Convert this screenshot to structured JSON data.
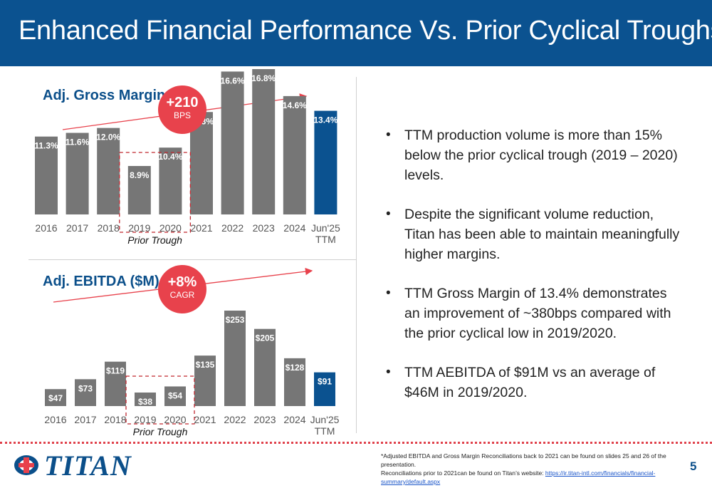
{
  "title": "Enhanced Financial Performance Vs. Prior Cyclical Troughs",
  "chart_data": [
    {
      "type": "bar",
      "title": "Adj. Gross Margin",
      "categories": [
        "2016",
        "2017",
        "2018",
        "2019",
        "2020",
        "2021",
        "2022",
        "2023",
        "2024",
        "Jun'25 TTM"
      ],
      "values": [
        11.3,
        11.6,
        12.0,
        8.9,
        10.4,
        13.3,
        16.6,
        16.8,
        14.6,
        13.4
      ],
      "value_labels": [
        "11.3%",
        "11.6%",
        "12.0%",
        "8.9%",
        "10.4%",
        "13.3%",
        "16.6%",
        "16.8%",
        "14.6%",
        "13.4%"
      ],
      "highlight_index": 9,
      "trough_label": "Prior Trough",
      "badge": {
        "value": "+210",
        "unit": "BPS"
      },
      "colors": {
        "bar": "#767676",
        "highlight": "#0b5290",
        "arrow": "#e8424c"
      }
    },
    {
      "type": "bar",
      "title": "Adj. EBITDA ($M)",
      "categories": [
        "2016",
        "2017",
        "2018",
        "2019",
        "2020",
        "2021",
        "2022",
        "2023",
        "2024",
        "Jun'25 TTM"
      ],
      "values": [
        47,
        73,
        119,
        38,
        54,
        135,
        253,
        205,
        128,
        91
      ],
      "value_labels": [
        "$47",
        "$73",
        "$119",
        "$38",
        "$54",
        "$135",
        "$253",
        "$205",
        "$128",
        "$91"
      ],
      "highlight_index": 9,
      "trough_label": "Prior Trough",
      "badge": {
        "value": "+8%",
        "unit": "CAGR"
      },
      "colors": {
        "bar": "#767676",
        "highlight": "#0b5290",
        "arrow": "#e8424c"
      }
    }
  ],
  "bullets": [
    "TTM production volume is more than 15% below the prior cyclical trough (2019 – 2020) levels.",
    "Despite the significant volume reduction, Titan has been able to maintain meaningfully higher margins.",
    " TTM Gross Margin of 13.4% demonstrates an improvement of ~380bps compared with the prior cyclical low in 2019/2020.",
    "TTM AEBITDA of $91M vs an average of $46M in 2019/2020."
  ],
  "footnote": {
    "line1": "*Adjusted EBITDA and Gross Margin Reconciliations back to 2021 can be found on slides 25 and 26 of the presentation.",
    "line2": "Reconciliations prior to 2021can be found on Titan’s website: ",
    "link": "https://ir.titan-intl.com/financials/financial-summary/default.aspx"
  },
  "logo_text": "TITAN",
  "page_number": "5"
}
